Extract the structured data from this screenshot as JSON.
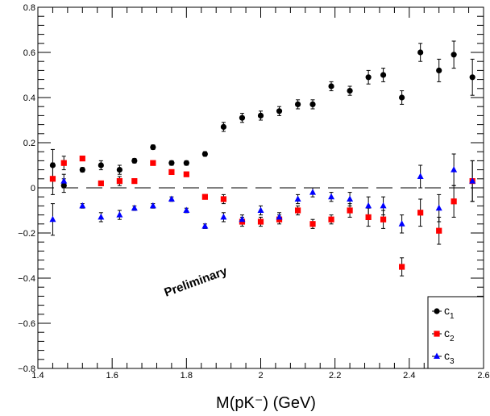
{
  "chart_data": {
    "type": "scatter",
    "xlabel": "M(pK⁻) (GeV)",
    "ylabel": "",
    "xlim": [
      1.4,
      2.6
    ],
    "ylim": [
      -0.8,
      0.8
    ],
    "x_ticks": [
      "1.4",
      "1.6",
      "1.8",
      "2",
      "2.2",
      "2.4",
      "2.6"
    ],
    "y_ticks": [
      "0.8",
      "0.6",
      "0.4",
      "0.2",
      "0",
      "−0.2",
      "−0.4",
      "−0.6",
      "−0.8"
    ],
    "annotation": "Preliminary",
    "reference_line_y": 0,
    "legend_position": "bottom-right",
    "series": [
      {
        "name": "c1",
        "color": "#000000",
        "marker": "circle",
        "x": [
          1.44,
          1.47,
          1.52,
          1.57,
          1.62,
          1.66,
          1.71,
          1.76,
          1.8,
          1.85,
          1.9,
          1.95,
          2.0,
          2.05,
          2.1,
          2.14,
          2.19,
          2.24,
          2.29,
          2.33,
          2.38,
          2.43,
          2.48,
          2.52,
          2.57
        ],
        "y": [
          0.1,
          0.01,
          0.08,
          0.1,
          0.08,
          0.12,
          0.18,
          0.11,
          0.11,
          0.15,
          0.27,
          0.31,
          0.32,
          0.34,
          0.37,
          0.37,
          0.45,
          0.43,
          0.49,
          0.5,
          0.4,
          0.6,
          0.52,
          0.59,
          0.49
        ],
        "err": [
          0.07,
          0.03,
          0.01,
          0.02,
          0.02,
          0.01,
          0.01,
          0.01,
          0.01,
          0.01,
          0.02,
          0.02,
          0.02,
          0.02,
          0.02,
          0.02,
          0.02,
          0.02,
          0.03,
          0.03,
          0.03,
          0.04,
          0.05,
          0.06,
          0.08
        ]
      },
      {
        "name": "c2",
        "color": "#ff0000",
        "marker": "square",
        "x": [
          1.44,
          1.47,
          1.52,
          1.57,
          1.62,
          1.66,
          1.71,
          1.76,
          1.8,
          1.85,
          1.9,
          1.95,
          2.0,
          2.05,
          2.1,
          2.14,
          2.19,
          2.24,
          2.29,
          2.33,
          2.38,
          2.43,
          2.48,
          2.52,
          2.57
        ],
        "y": [
          0.04,
          0.11,
          0.13,
          0.02,
          0.03,
          0.03,
          0.11,
          0.07,
          0.06,
          -0.04,
          -0.05,
          -0.15,
          -0.15,
          -0.14,
          -0.1,
          -0.16,
          -0.14,
          -0.1,
          -0.13,
          -0.14,
          -0.35,
          -0.11,
          -0.19,
          -0.06,
          0.03
        ],
        "err": [
          0.07,
          0.03,
          0.01,
          0.01,
          0.02,
          0.01,
          0.01,
          0.01,
          0.01,
          0.01,
          0.02,
          0.02,
          0.02,
          0.02,
          0.02,
          0.02,
          0.02,
          0.03,
          0.04,
          0.04,
          0.04,
          0.06,
          0.06,
          0.07,
          0.09
        ]
      },
      {
        "name": "c3",
        "color": "#0000ff",
        "marker": "triangle",
        "x": [
          1.44,
          1.47,
          1.52,
          1.57,
          1.62,
          1.66,
          1.71,
          1.76,
          1.8,
          1.85,
          1.9,
          1.95,
          2.0,
          2.05,
          2.1,
          2.14,
          2.19,
          2.24,
          2.29,
          2.33,
          2.38,
          2.43,
          2.48,
          2.52,
          2.57
        ],
        "y": [
          -0.14,
          0.03,
          -0.08,
          -0.13,
          -0.12,
          -0.09,
          -0.08,
          -0.05,
          -0.1,
          -0.17,
          -0.13,
          -0.14,
          -0.1,
          -0.13,
          -0.05,
          -0.02,
          -0.04,
          -0.05,
          -0.08,
          -0.08,
          -0.16,
          0.05,
          -0.09,
          0.08,
          0.03
        ],
        "err": [
          0.07,
          0.03,
          0.01,
          0.02,
          0.02,
          0.01,
          0.01,
          0.01,
          0.01,
          0.01,
          0.02,
          0.02,
          0.02,
          0.02,
          0.02,
          0.02,
          0.02,
          0.03,
          0.04,
          0.04,
          0.04,
          0.05,
          0.06,
          0.07,
          0.09
        ]
      }
    ],
    "legend": [
      {
        "base": "c",
        "sub": "1"
      },
      {
        "base": "c",
        "sub": "2"
      },
      {
        "base": "c",
        "sub": "3"
      }
    ]
  }
}
